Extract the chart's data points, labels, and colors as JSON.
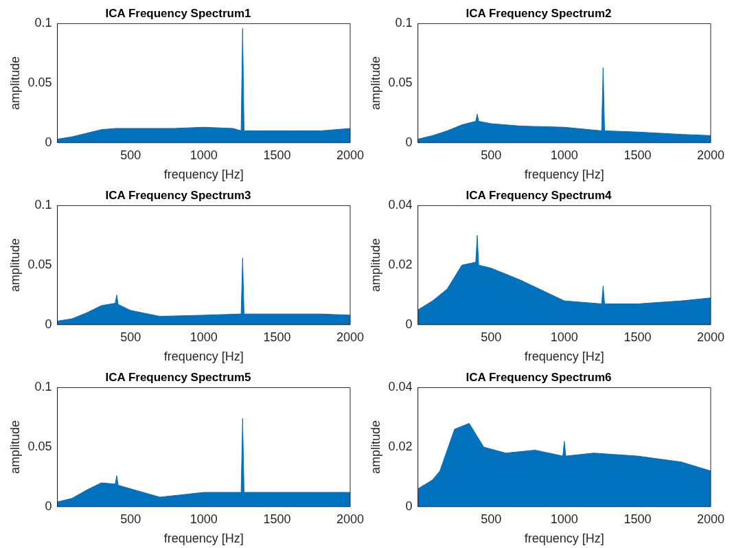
{
  "chart_data": [
    {
      "type": "area",
      "title": "ICA Frequency Spectrum1",
      "xlabel": "frequency [Hz]",
      "ylabel": "amplitude",
      "color": "#0072bd",
      "xlim": [
        0,
        2000
      ],
      "xticks": [
        500,
        1000,
        1500,
        2000
      ],
      "ylim": [
        0,
        0.1
      ],
      "yticks": [
        0,
        0.05,
        0.1
      ],
      "x": [
        0,
        100,
        200,
        300,
        400,
        600,
        800,
        1000,
        1200,
        1255,
        1265,
        1275,
        1400,
        1600,
        1800,
        2000
      ],
      "values": [
        0.003,
        0.005,
        0.008,
        0.011,
        0.012,
        0.012,
        0.012,
        0.013,
        0.012,
        0.01,
        0.096,
        0.01,
        0.01,
        0.01,
        0.01,
        0.012
      ]
    },
    {
      "type": "area",
      "title": "ICA Frequency Spectrum2",
      "xlabel": "frequency [Hz]",
      "ylabel": "amplitude",
      "color": "#0072bd",
      "xlim": [
        0,
        2000
      ],
      "xticks": [
        500,
        1000,
        1500,
        2000
      ],
      "ylim": [
        0,
        0.1
      ],
      "yticks": [
        0,
        0.05,
        0.1
      ],
      "x": [
        0,
        100,
        200,
        300,
        395,
        405,
        415,
        500,
        700,
        1000,
        1255,
        1265,
        1275,
        1500,
        1800,
        2000
      ],
      "values": [
        0.003,
        0.006,
        0.01,
        0.015,
        0.018,
        0.024,
        0.018,
        0.016,
        0.014,
        0.013,
        0.01,
        0.063,
        0.01,
        0.009,
        0.007,
        0.006
      ]
    },
    {
      "type": "area",
      "title": "ICA Frequency Spectrum3",
      "xlabel": "frequency [Hz]",
      "ylabel": "amplitude",
      "color": "#0072bd",
      "xlim": [
        0,
        2000
      ],
      "xticks": [
        500,
        1000,
        1500,
        2000
      ],
      "ylim": [
        0,
        0.1
      ],
      "yticks": [
        0,
        0.05,
        0.1
      ],
      "x": [
        0,
        100,
        200,
        300,
        395,
        405,
        415,
        500,
        700,
        1000,
        1255,
        1265,
        1275,
        1500,
        1800,
        2000
      ],
      "values": [
        0.003,
        0.005,
        0.01,
        0.016,
        0.018,
        0.025,
        0.017,
        0.012,
        0.007,
        0.008,
        0.009,
        0.056,
        0.009,
        0.009,
        0.009,
        0.008
      ]
    },
    {
      "type": "area",
      "title": "ICA Frequency Spectrum4",
      "xlabel": "frequency [Hz]",
      "ylabel": "amplitude",
      "color": "#0072bd",
      "xlim": [
        0,
        2000
      ],
      "xticks": [
        500,
        1000,
        1500,
        2000
      ],
      "ylim": [
        0,
        0.04
      ],
      "yticks": [
        0,
        0.02,
        0.04
      ],
      "x": [
        0,
        100,
        200,
        300,
        395,
        405,
        415,
        500,
        700,
        1000,
        1255,
        1265,
        1275,
        1500,
        1800,
        2000
      ],
      "values": [
        0.005,
        0.008,
        0.012,
        0.02,
        0.021,
        0.03,
        0.02,
        0.019,
        0.015,
        0.008,
        0.007,
        0.013,
        0.007,
        0.007,
        0.008,
        0.009
      ]
    },
    {
      "type": "area",
      "title": "ICA Frequency Spectrum5",
      "xlabel": "frequency [Hz]",
      "ylabel": "amplitude",
      "color": "#0072bd",
      "xlim": [
        0,
        2000
      ],
      "xticks": [
        500,
        1000,
        1500,
        2000
      ],
      "ylim": [
        0,
        0.1
      ],
      "yticks": [
        0,
        0.05,
        0.1
      ],
      "x": [
        0,
        100,
        200,
        300,
        395,
        405,
        415,
        500,
        700,
        1000,
        1255,
        1265,
        1275,
        1500,
        1800,
        2000
      ],
      "values": [
        0.004,
        0.007,
        0.014,
        0.02,
        0.019,
        0.026,
        0.018,
        0.015,
        0.008,
        0.012,
        0.012,
        0.074,
        0.012,
        0.012,
        0.012,
        0.012
      ]
    },
    {
      "type": "area",
      "title": "ICA Frequency Spectrum6",
      "xlabel": "frequency [Hz]",
      "ylabel": "amplitude",
      "color": "#0072bd",
      "xlim": [
        0,
        2000
      ],
      "xticks": [
        500,
        1000,
        1500,
        2000
      ],
      "ylim": [
        0,
        0.04
      ],
      "yticks": [
        0,
        0.02,
        0.04
      ],
      "x": [
        0,
        100,
        150,
        250,
        350,
        450,
        600,
        800,
        990,
        1000,
        1010,
        1200,
        1500,
        1800,
        2000
      ],
      "values": [
        0.006,
        0.009,
        0.012,
        0.026,
        0.028,
        0.02,
        0.018,
        0.019,
        0.017,
        0.022,
        0.017,
        0.018,
        0.017,
        0.015,
        0.012
      ]
    }
  ]
}
